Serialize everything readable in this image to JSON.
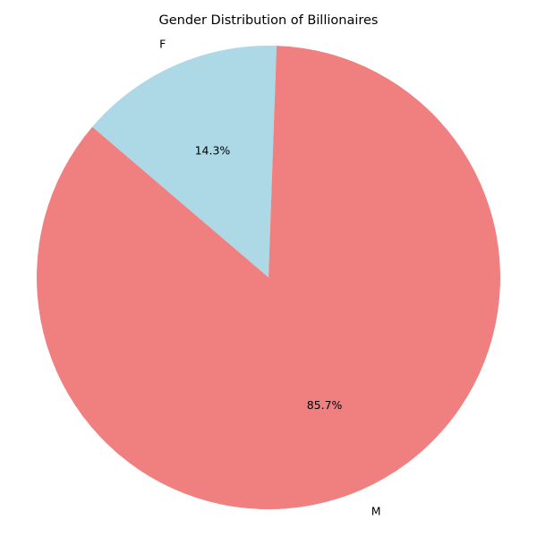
{
  "chart_data": {
    "type": "pie",
    "title": "Gender Distribution of Billionaires",
    "categories": [
      "F",
      "M"
    ],
    "values": [
      14.3,
      85.7
    ],
    "value_labels": [
      "14.3%",
      "85.7%"
    ],
    "colors": [
      "#add8e6",
      "#f08080"
    ],
    "start_angle_deg": 88,
    "legend": "none"
  }
}
